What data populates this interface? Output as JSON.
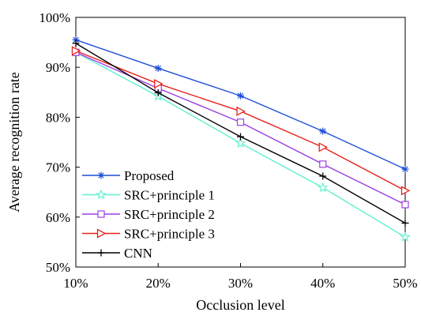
{
  "chart_data": {
    "type": "line",
    "xlabel": "Occlusion level",
    "ylabel": "Average recognition rate",
    "categories": [
      "10%",
      "20%",
      "30%",
      "40%",
      "50%"
    ],
    "ylim": [
      50,
      100
    ],
    "yticks": [
      "50%",
      "60%",
      "70%",
      "80%",
      "90%",
      "100%"
    ],
    "grid": false,
    "legend_position": "bottom-left",
    "series": [
      {
        "name": "Proposed",
        "color": "#1f4fd6",
        "marker": "asterisk",
        "values": [
          95.5,
          89.8,
          84.3,
          77.2,
          69.6
        ]
      },
      {
        "name": "SRC+principle 1",
        "color": "#5ff0d0",
        "marker": "star",
        "values": [
          93.0,
          84.2,
          74.8,
          65.9,
          56.0
        ]
      },
      {
        "name": "SRC+principle 2",
        "color": "#9b3fe0",
        "marker": "square",
        "values": [
          93.0,
          85.8,
          79.0,
          70.6,
          62.5
        ]
      },
      {
        "name": "SRC+principle 3",
        "color": "#e8231c",
        "marker": "triangle-right",
        "values": [
          93.3,
          86.7,
          81.2,
          74.0,
          65.3
        ]
      },
      {
        "name": "CNN",
        "color": "#000000",
        "marker": "plus",
        "values": [
          94.8,
          84.9,
          76.1,
          68.2,
          58.8
        ]
      }
    ]
  }
}
